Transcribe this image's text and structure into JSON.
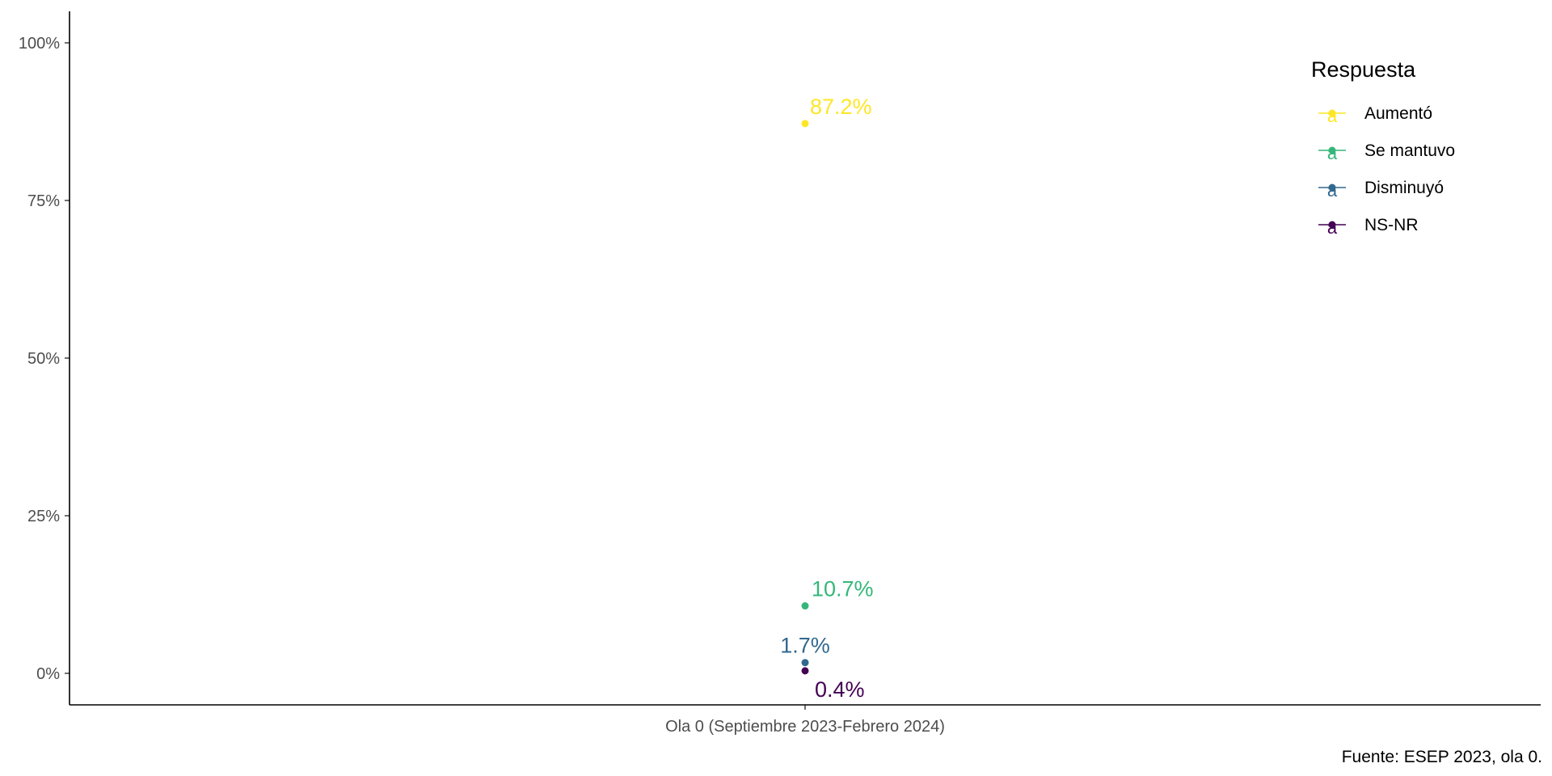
{
  "chart_data": {
    "type": "scatter",
    "categories": [
      "Ola 0 (Septiembre 2023-Febrero 2024)"
    ],
    "series": [
      {
        "name": "Aumentó",
        "values": [
          87.2
        ],
        "label": "87.2%",
        "color": "#FDE725"
      },
      {
        "name": "Se mantuvo",
        "values": [
          10.7
        ],
        "label": "10.7%",
        "color": "#35B779"
      },
      {
        "name": "Disminuyó",
        "values": [
          1.7
        ],
        "label": "1.7%",
        "color": "#31688E"
      },
      {
        "name": "NS-NR",
        "values": [
          0.4
        ],
        "label": "0.4%",
        "color": "#440154"
      }
    ],
    "y_ticks": [
      {
        "value": 0,
        "label": "0%"
      },
      {
        "value": 25,
        "label": "25%"
      },
      {
        "value": 50,
        "label": "50%"
      },
      {
        "value": 75,
        "label": "75%"
      },
      {
        "value": 100,
        "label": "100%"
      }
    ],
    "ylim": [
      -5,
      105
    ],
    "grid": false,
    "legend": {
      "title": "Respuesta",
      "placement": "top-right",
      "key_glyph": "a"
    },
    "caption": "Fuente: ESEP 2023, ola 0."
  }
}
